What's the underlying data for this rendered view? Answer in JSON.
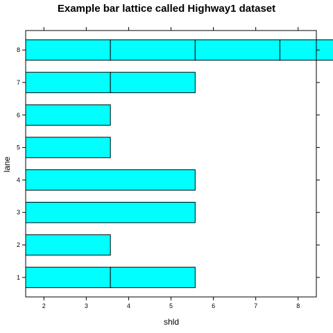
{
  "chart_data": {
    "type": "bar",
    "orientation": "horizontal",
    "stacked": true,
    "title": "Example bar lattice called Highway1 dataset",
    "xlabel": "shld",
    "ylabel": "lane",
    "categories": [
      "1",
      "2",
      "3",
      "4",
      "5",
      "6",
      "7",
      "8"
    ],
    "xlim": [
      1.57,
      8.43
    ],
    "x_ticks": [
      "2",
      "3",
      "4",
      "5",
      "6",
      "7",
      "8"
    ],
    "x_tick_values": [
      2,
      3,
      4,
      5,
      6,
      7,
      8
    ],
    "segments": [
      [
        2,
        2
      ],
      [
        2
      ],
      [
        4
      ],
      [
        4
      ],
      [
        2
      ],
      [
        2
      ],
      [
        2,
        2
      ],
      [
        2,
        2,
        2,
        2
      ]
    ],
    "fill_color": "#00FFFF",
    "border_color": "#000000",
    "grid": false
  }
}
